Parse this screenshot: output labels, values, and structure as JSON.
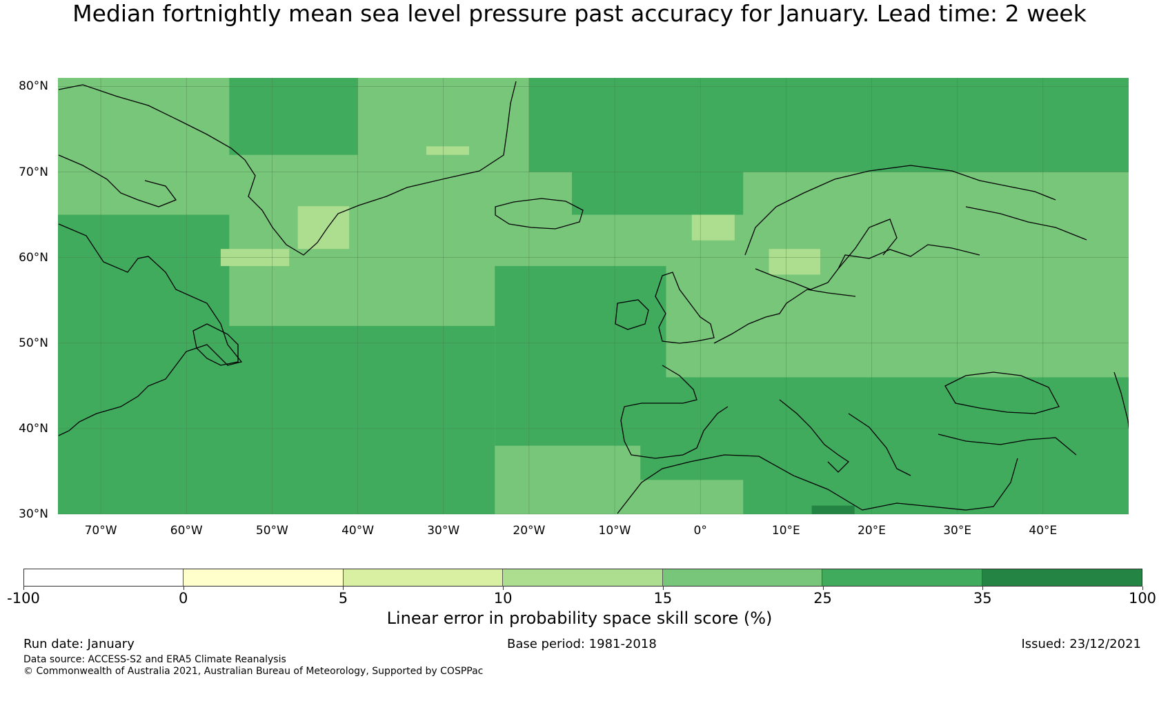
{
  "title": "Median fortnightly mean sea level pressure past accuracy for January. Lead time: 2 week",
  "map": {
    "latitude_labels": [
      "80°N",
      "70°N",
      "60°N",
      "50°N",
      "40°N",
      "30°N"
    ],
    "latitudes": [
      80,
      70,
      60,
      50,
      40,
      30
    ],
    "longitude_labels": [
      "70°W",
      "60°W",
      "50°W",
      "40°W",
      "30°W",
      "20°W",
      "10°W",
      "0°",
      "10°E",
      "20°E",
      "30°E",
      "40°E"
    ],
    "longitudes": [
      -70,
      -60,
      -50,
      -40,
      -30,
      -20,
      -10,
      0,
      10,
      20,
      30,
      40
    ],
    "lon_range": [
      -75,
      50
    ],
    "lat_range": [
      30,
      81
    ],
    "regions": [
      {
        "name": "base",
        "category": 4,
        "lon": [
          -75,
          50
        ],
        "lat": [
          30,
          81
        ]
      },
      {
        "name": "nw-atlantic-deep",
        "category": 6,
        "lon": [
          -75,
          -52
        ],
        "lat": [
          30,
          49
        ]
      },
      {
        "name": "mid-atlantic-deep",
        "category": 6,
        "lon": [
          -48,
          -40
        ],
        "lat": [
          35,
          49
        ]
      },
      {
        "name": "mid-atlantic-deep-2",
        "category": 6,
        "lon": [
          -43,
          -38
        ],
        "lat": [
          39,
          46
        ]
      },
      {
        "name": "azores-deep",
        "category": 6,
        "lon": [
          -30,
          -25
        ],
        "lat": [
          30,
          34
        ]
      },
      {
        "name": "n-atlantic-mid",
        "category": 5,
        "lon": [
          -75,
          -24
        ],
        "lat": [
          30,
          52
        ]
      },
      {
        "name": "central-atlantic-mid",
        "category": 5,
        "lon": [
          -24,
          -4
        ],
        "lat": [
          38,
          59
        ]
      },
      {
        "name": "europe-mid",
        "category": 5,
        "lon": [
          -10,
          50
        ],
        "lat": [
          30,
          46
        ]
      },
      {
        "name": "arctic-mid",
        "category": 5,
        "lon": [
          -20,
          50
        ],
        "lat": [
          70,
          81
        ]
      },
      {
        "name": "norwegian-sea-mid",
        "category": 5,
        "lon": [
          -15,
          5
        ],
        "lat": [
          65,
          72
        ]
      },
      {
        "name": "canada-mid",
        "category": 5,
        "lon": [
          -75,
          -55
        ],
        "lat": [
          45,
          65
        ]
      },
      {
        "name": "greenland-mid",
        "category": 5,
        "lon": [
          -55,
          -40
        ],
        "lat": [
          72,
          81
        ]
      },
      {
        "name": "iberia-light",
        "category": 4,
        "lon": [
          -20,
          -7
        ],
        "lat": [
          32,
          38
        ]
      },
      {
        "name": "n-africa-light",
        "category": 4,
        "lon": [
          -10,
          5
        ],
        "lat": [
          30,
          34
        ]
      },
      {
        "name": "scandinavia-pale",
        "category": 3,
        "lon": [
          -1,
          4
        ],
        "lat": [
          62,
          65
        ]
      },
      {
        "name": "baltic-pale",
        "category": 3,
        "lon": [
          8,
          14
        ],
        "lat": [
          58,
          61
        ]
      },
      {
        "name": "greenland-pale",
        "category": 3,
        "lon": [
          -47,
          -41
        ],
        "lat": [
          61,
          66
        ]
      },
      {
        "name": "denmark-strait-pale",
        "category": 3,
        "lon": [
          -56,
          -48
        ],
        "lat": [
          59,
          61
        ]
      },
      {
        "name": "east-atlantic-pale",
        "category": 3,
        "lon": [
          -32,
          -27
        ],
        "lat": [
          72,
          73
        ]
      },
      {
        "name": "med-deep",
        "category": 6,
        "lon": [
          13,
          18
        ],
        "lat": [
          30,
          31
        ]
      }
    ]
  },
  "coastline_color": "#000000",
  "colorbar": {
    "boundaries": [
      "-100",
      "0",
      "5",
      "10",
      "15",
      "25",
      "35",
      "100"
    ],
    "colors": [
      "#ffffff",
      "#ffffcc",
      "#d9f0a3",
      "#addd8e",
      "#78c679",
      "#41ab5d",
      "#238443"
    ],
    "label": "Linear error in probability space skill score (%)"
  },
  "footer": {
    "run_date": "Run date: January",
    "base_period": "Base period: 1981-2018",
    "issued": "Issued: 23/12/2021",
    "data_source": "Data source: ACCESS-S2 and ERA5 Climate Reanalysis",
    "copyright": "© Commonwealth of Australia 2021, Australian Bureau of Meteorology, Supported by COSPPac"
  }
}
